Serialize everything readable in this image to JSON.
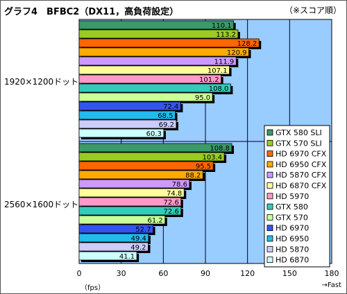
{
  "header": {
    "title": "グラフ4　BFBC2（DX11，高負荷設定）",
    "note": "（※スコア順）"
  },
  "axis": {
    "unit_label": "（fps）",
    "fast_label": "→Fast"
  },
  "chart_data": {
    "type": "bar",
    "orientation": "horizontal",
    "title": "グラフ4　BFBC2（DX11，高負荷設定）",
    "xlim": [
      0,
      180
    ],
    "xticks": [
      0,
      30,
      60,
      90,
      120,
      150,
      180
    ],
    "xlabel": "（fps）",
    "grid": "vertical",
    "legend": "bottom-right",
    "series": [
      {
        "name": "GTX 580 SLI",
        "color": "#3a9a6a"
      },
      {
        "name": "GTX 570 SLI",
        "color": "#99cc22"
      },
      {
        "name": "HD 6970 CFX",
        "color": "#ff6600"
      },
      {
        "name": "HD 6950 CFX",
        "color": "#ffaa00"
      },
      {
        "name": "HD 5870 CFX",
        "color": "#cc99ff"
      },
      {
        "name": "HD 6870 CFX",
        "color": "#ffff99"
      },
      {
        "name": "HD 5970",
        "color": "#ff99cc"
      },
      {
        "name": "GTX 580",
        "color": "#33ccbb"
      },
      {
        "name": "GTX 570",
        "color": "#ccff99"
      },
      {
        "name": "HD 6970",
        "color": "#3355ee"
      },
      {
        "name": "HD 6950",
        "color": "#22bbee"
      },
      {
        "name": "HD 5870",
        "color": "#ccccff"
      },
      {
        "name": "HD 6870",
        "color": "#ccffff"
      }
    ],
    "groups": [
      {
        "label": "1920×1200ドット",
        "values": [
          110.1,
          113.2,
          128.2,
          120.9,
          111.9,
          107.1,
          101.2,
          108.0,
          95.0,
          72.4,
          68.5,
          69.2,
          60.3
        ]
      },
      {
        "label": "2560×1600ドット",
        "values": [
          108.8,
          103.4,
          95.5,
          88.2,
          78.6,
          74.8,
          72.6,
          72.6,
          61.2,
          52.7,
          49.4,
          49.2,
          41.1
        ]
      }
    ]
  }
}
